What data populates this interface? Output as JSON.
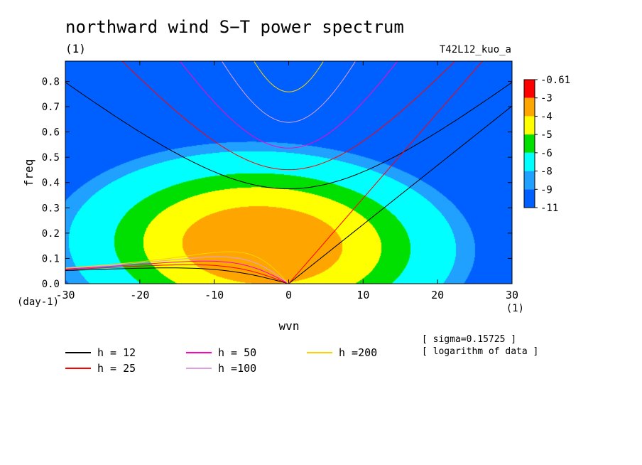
{
  "chart_data": {
    "type": "heatmap",
    "title": "northward wind S−T power spectrum",
    "subtitle": "(1)",
    "run_label": "T42L12_kuo_a",
    "xlabel": "wvn",
    "x_unit": "(1)",
    "ylabel": "freq",
    "y_unit": "(day-1)",
    "xlim": [
      -30,
      30
    ],
    "ylim": [
      0,
      0.88
    ],
    "xticks": [
      "-30",
      "-20",
      "-10",
      "0",
      "10",
      "20",
      "30"
    ],
    "yticks": [
      "0.0",
      "0.1",
      "0.2",
      "0.3",
      "0.4",
      "0.5",
      "0.6",
      "0.7",
      "0.8"
    ],
    "colorbar": {
      "labels": [
        "-0.61",
        "-3",
        "-4",
        "-5",
        "-6",
        "-8",
        "-9",
        "-11"
      ],
      "colors": [
        "#ff0000",
        "#ffa500",
        "#ffff00",
        "#00e000",
        "#00ffff",
        "#20a0ff",
        "#0060ff"
      ]
    },
    "field": {
      "description_levels": [
        -3,
        -4,
        -5,
        -6,
        -8,
        -9
      ],
      "peak": {
        "x": -3,
        "y": 0.15
      }
    },
    "dispersion_curves": [
      {
        "name": "h = 12",
        "h": 12,
        "color": "#000000"
      },
      {
        "name": "h = 25",
        "h": 25,
        "color": "#ff0000"
      },
      {
        "name": "h = 50",
        "h": 50,
        "color": "#ff00c0"
      },
      {
        "name": "h =100",
        "h": 100,
        "color": "#e0a0e0"
      },
      {
        "name": "h =200",
        "h": 200,
        "color": "#ffd000"
      }
    ],
    "notes": [
      "[ sigma=0.15725 ]",
      "[ logarithm of data ]"
    ],
    "grid": false,
    "legend_position": "bottom"
  }
}
